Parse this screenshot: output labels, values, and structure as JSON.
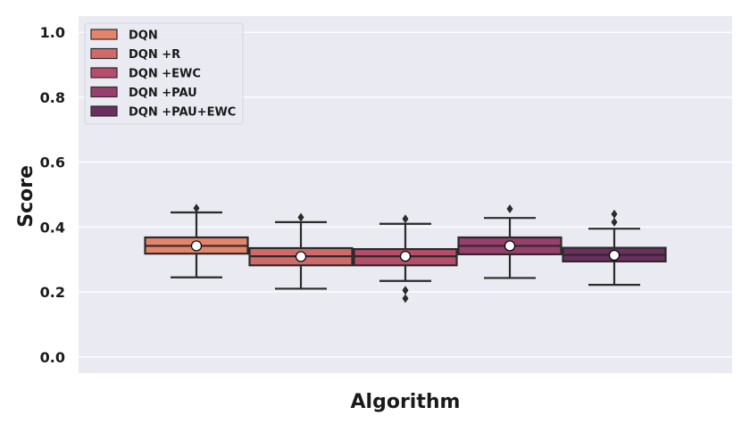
{
  "chart_data": {
    "type": "box",
    "xlabel": "Algorithm",
    "ylabel": "Score",
    "ylim": [
      -0.05,
      1.05
    ],
    "yticks": [
      0.0,
      0.2,
      0.4,
      0.6,
      0.8,
      1.0
    ],
    "ytick_labels": [
      "0.0",
      "0.2",
      "0.4",
      "0.6",
      "0.8",
      "1.0"
    ],
    "grid": true,
    "legend_position": "top-left",
    "background": "#eaeaf2",
    "series": [
      {
        "name": "DQN",
        "color": "#e5846a",
        "whisker_low": 0.245,
        "q1": 0.318,
        "median": 0.342,
        "q3": 0.368,
        "whisker_high": 0.445,
        "mean": 0.342,
        "outliers": [
          0.458
        ]
      },
      {
        "name": "DQN +R",
        "color": "#d06a6a",
        "whisker_low": 0.21,
        "q1": 0.282,
        "median": 0.31,
        "q3": 0.335,
        "whisker_high": 0.415,
        "mean": 0.309,
        "outliers": [
          0.43
        ]
      },
      {
        "name": "DQN +EWC",
        "color": "#b74c6b",
        "whisker_low": 0.234,
        "q1": 0.282,
        "median": 0.31,
        "q3": 0.332,
        "whisker_high": 0.41,
        "mean": 0.31,
        "outliers": [
          0.425,
          0.205,
          0.18
        ]
      },
      {
        "name": "DQN +PAU",
        "color": "#983f6d",
        "whisker_low": 0.243,
        "q1": 0.316,
        "median": 0.342,
        "q3": 0.368,
        "whisker_high": 0.428,
        "mean": 0.342,
        "outliers": [
          0.456
        ]
      },
      {
        "name": "DQN +PAU+EWC",
        "color": "#6c2e61",
        "whisker_low": 0.222,
        "q1": 0.294,
        "median": 0.314,
        "q3": 0.336,
        "whisker_high": 0.395,
        "mean": 0.313,
        "outliers": [
          0.44,
          0.415
        ]
      }
    ]
  }
}
